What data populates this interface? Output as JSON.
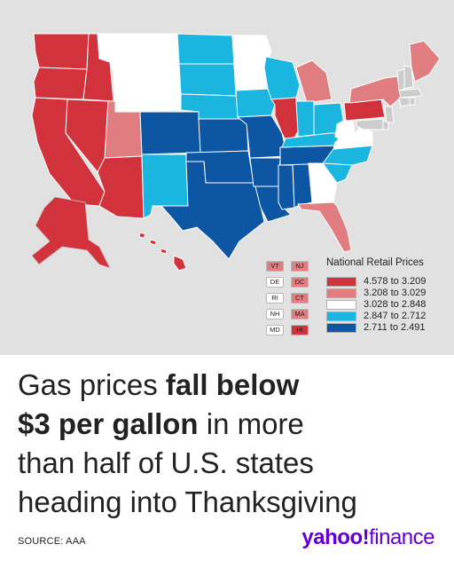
{
  "colors": {
    "tier1": "#d1323b",
    "tier2": "#e07d80",
    "tier3": "#ffffff",
    "tier4": "#1ab6e0",
    "tier5": "#0d56a3",
    "brand": "#6001d2",
    "text": "#222222"
  },
  "legend": {
    "title": "National Retail Prices",
    "items": [
      {
        "label": "4.578 to 3.209",
        "tier": "tier1"
      },
      {
        "label": "3.208 to 3.029",
        "tier": "tier2"
      },
      {
        "label": "3.028 to 2.848",
        "tier": "tier3"
      },
      {
        "label": "2.847 to 2.712",
        "tier": "tier4"
      },
      {
        "label": "2.711 to 2.491",
        "tier": "tier5"
      }
    ]
  },
  "small_states": [
    {
      "left": {
        "abbr": "VT",
        "tier": "tier2"
      },
      "right": {
        "abbr": "NJ",
        "tier": "tier2"
      }
    },
    {
      "left": {
        "abbr": "DE",
        "tier": "tier3"
      },
      "right": {
        "abbr": "DC",
        "tier": "tier2"
      }
    },
    {
      "left": {
        "abbr": "RI",
        "tier": "tier3"
      },
      "right": {
        "abbr": "CT",
        "tier": "tier2"
      }
    },
    {
      "left": {
        "abbr": "NH",
        "tier": "tier3"
      },
      "right": {
        "abbr": "MA",
        "tier": "tier2"
      }
    },
    {
      "left": {
        "abbr": "MD",
        "tier": "tier3"
      },
      "right": {
        "abbr": "HI",
        "tier": "tier1"
      }
    }
  ],
  "state_tiers": {
    "WA": "tier1",
    "OR": "tier1",
    "CA": "tier1",
    "NV": "tier1",
    "ID": "tier1",
    "AZ": "tier1",
    "AK": "tier1",
    "HI": "tier1",
    "IL": "tier1",
    "PA": "tier1",
    "UT": "tier2",
    "MI": "tier2",
    "NY": "tier2",
    "ME": "tier2",
    "FL": "tier2",
    "MT": "tier3",
    "WY": "tier3",
    "MN": "tier3",
    "GA": "tier3",
    "VA": "tier3",
    "WV": "tier3",
    "ND": "tier4",
    "SD": "tier4",
    "NE": "tier4",
    "IA": "tier4",
    "WI": "tier4",
    "NM": "tier4",
    "IN": "tier4",
    "OH": "tier4",
    "KY": "tier4",
    "NC": "tier4",
    "SC": "tier4",
    "CO": "tier5",
    "KS": "tier5",
    "OK": "tier5",
    "TX": "tier5",
    "MO": "tier5",
    "AR": "tier5",
    "LA": "tier5",
    "MS": "tier5",
    "AL": "tier5",
    "TN": "tier5"
  },
  "headline": {
    "part1": "Gas prices ",
    "bold1": "fall below",
    "bold2": "$3 per gallon",
    "part2": " in more",
    "line3": "than half of U.S. states",
    "line4": "heading into Thanksgiving"
  },
  "source": "SOURCE: AAA",
  "logo": {
    "brand": "yahoo",
    "mark": "!",
    "product": "finance"
  }
}
